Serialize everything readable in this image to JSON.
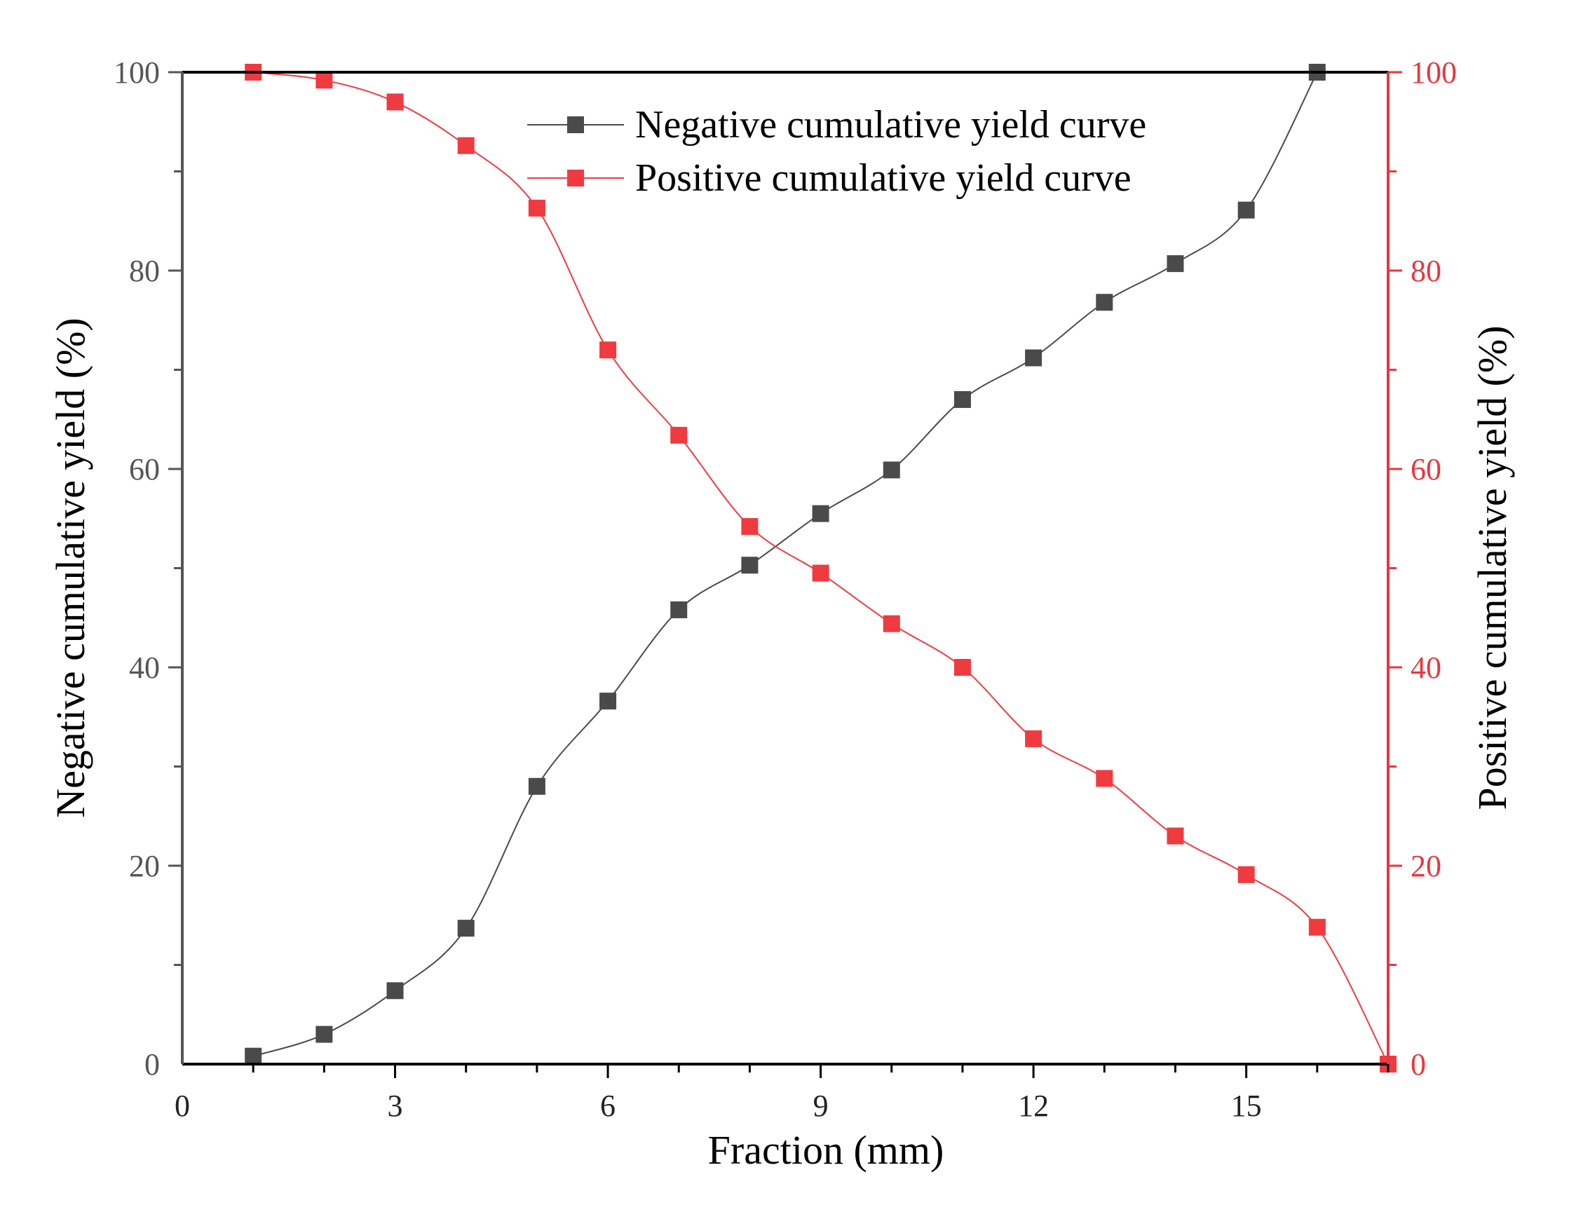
{
  "colors": {
    "left_axis": "#555555",
    "right_axis": "#e8373d",
    "frame": "#000000",
    "negative_series": "#4a4a4a",
    "positive_series": "#ef3b40"
  },
  "chart_data": {
    "type": "line",
    "xlabel": "Fraction (mm)",
    "ylabel_left": "Negative cumulative yield (%)",
    "ylabel_right": "Positive cumulative yield (%)",
    "xlim": [
      0,
      17
    ],
    "ylim_left": [
      0,
      100
    ],
    "ylim_right": [
      0,
      100
    ],
    "x_ticks": [
      0,
      3,
      6,
      9,
      12,
      15
    ],
    "y_ticks_left": [
      0,
      20,
      40,
      60,
      80,
      100
    ],
    "y_ticks_right": [
      0,
      20,
      40,
      60,
      80,
      100
    ],
    "legend_position": "top-center",
    "grid": false,
    "marker": "square",
    "smooth": true,
    "series": [
      {
        "name": "Negative cumulative yield curve",
        "axis": "left",
        "color": "#4a4a4a",
        "x": [
          1,
          2,
          3,
          4,
          5,
          6,
          7,
          8,
          9,
          10,
          11,
          12,
          13,
          14,
          15,
          16
        ],
        "y": [
          0.8,
          3.0,
          7.4,
          13.7,
          28.0,
          36.6,
          45.8,
          50.3,
          55.5,
          59.9,
          67.0,
          71.2,
          76.8,
          80.7,
          86.1,
          100.0
        ]
      },
      {
        "name": "Positive cumulative yield curve",
        "axis": "right",
        "color": "#ef3b40",
        "x": [
          1,
          2,
          3,
          4,
          5,
          6,
          7,
          8,
          9,
          10,
          11,
          12,
          13,
          14,
          15,
          16,
          17
        ],
        "y": [
          100.0,
          99.2,
          97.0,
          92.6,
          86.3,
          72.0,
          63.4,
          54.2,
          49.5,
          44.4,
          40.0,
          32.8,
          28.8,
          23.0,
          19.1,
          13.8,
          0.0
        ]
      }
    ]
  }
}
